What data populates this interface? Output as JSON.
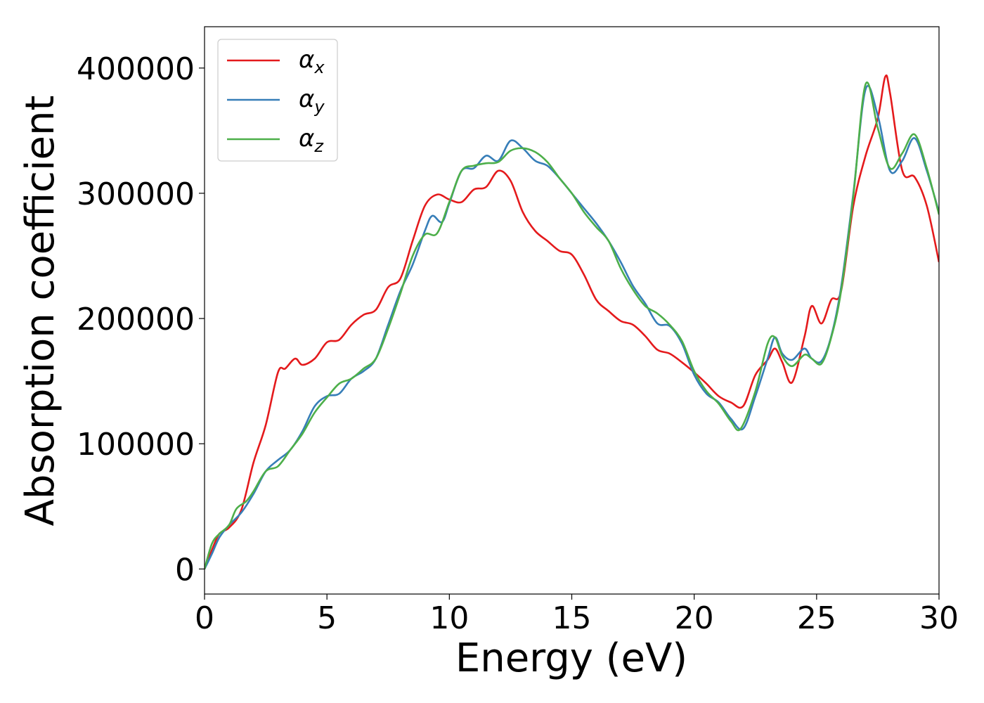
{
  "chart_data": {
    "type": "line",
    "title": "",
    "xlabel": "Energy (eV)",
    "ylabel": "Absorption coefficient",
    "xlim": [
      0,
      30
    ],
    "ylim": [
      -20000,
      433000
    ],
    "xticks": [
      0,
      5,
      10,
      15,
      20,
      25,
      30
    ],
    "yticks": [
      0,
      100000,
      200000,
      300000,
      400000
    ],
    "xtick_labels": [
      "0",
      "5",
      "10",
      "15",
      "20",
      "25",
      "30"
    ],
    "ytick_labels": [
      "0",
      "100000",
      "200000",
      "300000",
      "400000"
    ],
    "grid": false,
    "legend": "top-left",
    "series": [
      {
        "name": "α",
        "subscript": "x",
        "color": "#e41a1c",
        "x": [
          0,
          0.3,
          0.6,
          1.0,
          1.5,
          2.0,
          2.5,
          3.0,
          3.3,
          3.7,
          4.0,
          4.5,
          5.0,
          5.5,
          6.0,
          6.5,
          7.0,
          7.5,
          8.0,
          8.5,
          9.0,
          9.5,
          10.0,
          10.5,
          11.0,
          11.5,
          12.0,
          12.5,
          13.0,
          13.5,
          14.0,
          14.5,
          15.0,
          15.5,
          16.0,
          16.5,
          17.0,
          17.5,
          18.0,
          18.5,
          19.0,
          19.5,
          20.0,
          20.5,
          21.0,
          21.5,
          22.0,
          22.5,
          23.0,
          23.3,
          23.6,
          24.0,
          24.5,
          24.8,
          25.2,
          25.6,
          26.0,
          26.5,
          27.0,
          27.5,
          27.8,
          28.0,
          28.5,
          29.0,
          29.5,
          30.0
        ],
        "values": [
          0,
          15000,
          28000,
          33000,
          47000,
          85000,
          115000,
          157000,
          160000,
          168000,
          163000,
          168000,
          181000,
          183000,
          195000,
          203000,
          207000,
          225000,
          232000,
          262000,
          290000,
          299000,
          295000,
          293000,
          303000,
          305000,
          318000,
          310000,
          285000,
          270000,
          262000,
          254000,
          251000,
          235000,
          215000,
          206000,
          198000,
          195000,
          186000,
          175000,
          172000,
          165000,
          157000,
          148000,
          138000,
          133000,
          130000,
          155000,
          167000,
          176000,
          165000,
          149000,
          185000,
          210000,
          196000,
          215000,
          222000,
          290000,
          330000,
          360000,
          393000,
          380000,
          318000,
          313000,
          290000,
          245000
        ]
      },
      {
        "name": "α",
        "subscript": "y",
        "color": "#377eb8",
        "x": [
          0,
          0.3,
          0.6,
          1.0,
          1.5,
          2.0,
          2.5,
          3.0,
          3.5,
          4.0,
          4.5,
          5.0,
          5.5,
          6.0,
          6.5,
          7.0,
          7.5,
          8.0,
          8.5,
          9.0,
          9.3,
          9.7,
          10.0,
          10.5,
          11.0,
          11.5,
          12.0,
          12.5,
          13.0,
          13.5,
          14.0,
          14.5,
          15.0,
          15.5,
          16.0,
          16.5,
          17.0,
          17.5,
          18.0,
          18.5,
          19.0,
          19.5,
          20.0,
          20.5,
          21.0,
          21.5,
          22.0,
          22.5,
          23.0,
          23.3,
          23.6,
          24.0,
          24.5,
          24.8,
          25.2,
          25.6,
          26.0,
          26.5,
          27.0,
          27.5,
          28.0,
          28.5,
          29.0,
          29.5,
          30.0
        ],
        "values": [
          0,
          12000,
          25000,
          35000,
          45000,
          60000,
          78000,
          87000,
          95000,
          110000,
          130000,
          138000,
          140000,
          152000,
          158000,
          168000,
          195000,
          222000,
          243000,
          270000,
          282000,
          277000,
          292000,
          318000,
          320000,
          330000,
          326000,
          342000,
          336000,
          326000,
          322000,
          312000,
          300000,
          288000,
          276000,
          262000,
          245000,
          226000,
          212000,
          196000,
          194000,
          180000,
          155000,
          140000,
          133000,
          120000,
          112000,
          138000,
          168000,
          185000,
          172000,
          167000,
          176000,
          168000,
          166000,
          186000,
          225000,
          300000,
          383000,
          362000,
          318000,
          326000,
          344000,
          318000,
          285000
        ]
      },
      {
        "name": "α",
        "subscript": "z",
        "color": "#4daf4a",
        "x": [
          0,
          0.3,
          0.6,
          1.0,
          1.3,
          1.7,
          2.0,
          2.5,
          3.0,
          3.5,
          4.0,
          4.5,
          5.0,
          5.5,
          6.0,
          6.5,
          7.0,
          7.5,
          8.0,
          8.5,
          9.0,
          9.5,
          10.0,
          10.5,
          11.0,
          11.5,
          12.0,
          12.5,
          13.0,
          13.5,
          14.0,
          14.5,
          15.0,
          15.5,
          16.0,
          16.5,
          17.0,
          17.5,
          18.0,
          18.5,
          19.0,
          19.5,
          20.0,
          20.5,
          21.0,
          21.5,
          21.9,
          22.5,
          23.0,
          23.3,
          23.6,
          24.0,
          24.5,
          24.8,
          25.2,
          25.6,
          26.0,
          26.5,
          27.0,
          27.5,
          28.0,
          28.5,
          29.0,
          29.5,
          30.0
        ],
        "values": [
          0,
          20000,
          28000,
          35000,
          48000,
          54000,
          62000,
          78000,
          82000,
          95000,
          108000,
          125000,
          137000,
          148000,
          152000,
          160000,
          168000,
          192000,
          220000,
          250000,
          267000,
          268000,
          293000,
          318000,
          322000,
          324000,
          325000,
          334000,
          336000,
          333000,
          325000,
          312000,
          300000,
          285000,
          273000,
          262000,
          240000,
          223000,
          210000,
          204000,
          195000,
          182000,
          158000,
          142000,
          132000,
          118000,
          112000,
          142000,
          180000,
          185000,
          170000,
          162000,
          171000,
          168000,
          164000,
          185000,
          222000,
          298000,
          387000,
          352000,
          320000,
          332000,
          347000,
          320000,
          283000
        ]
      }
    ]
  }
}
